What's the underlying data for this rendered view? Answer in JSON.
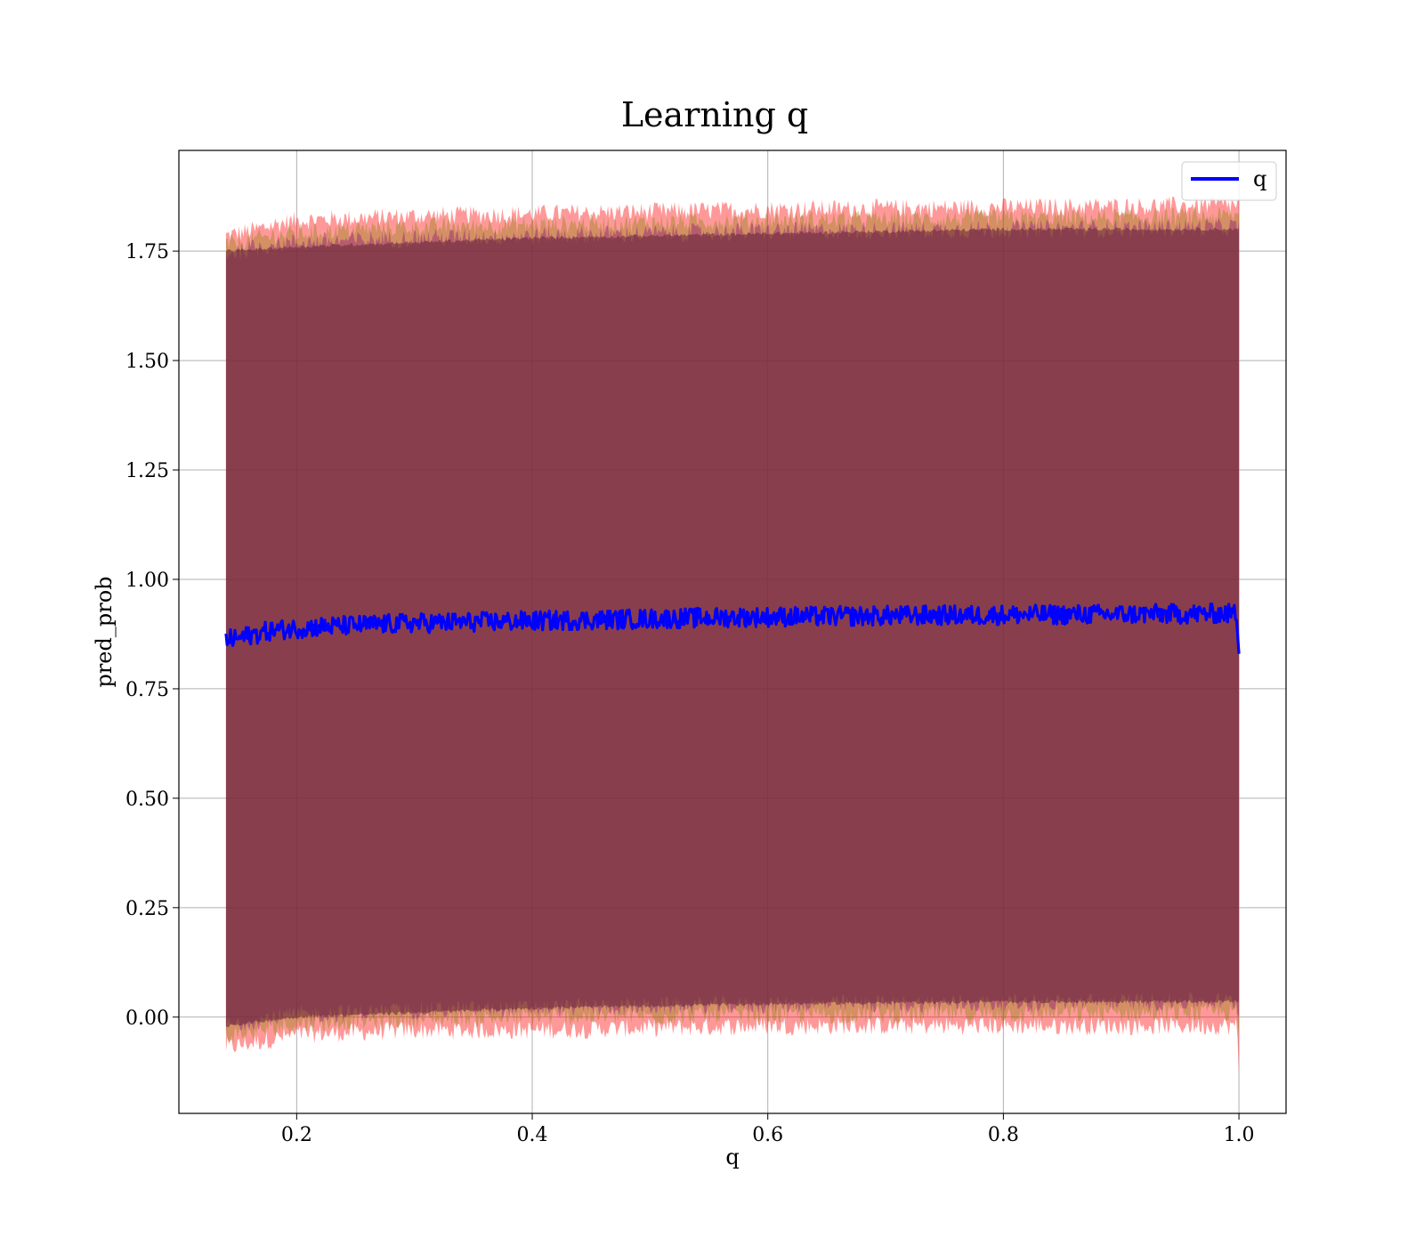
{
  "chart_data": {
    "type": "line",
    "title": "Learning q",
    "xlabel": "q",
    "ylabel": "pred_prob",
    "xlim": [
      0.1,
      1.04
    ],
    "ylim": [
      -0.22,
      1.98
    ],
    "xticks": [
      0.2,
      0.4,
      0.6,
      0.8,
      1.0
    ],
    "xtick_labels": [
      "0.2",
      "0.4",
      "0.6",
      "0.8",
      "1.0"
    ],
    "yticks": [
      0.0,
      0.25,
      0.5,
      0.75,
      1.0,
      1.25,
      1.5,
      1.75
    ],
    "ytick_labels": [
      "0.00",
      "0.25",
      "0.50",
      "0.75",
      "1.00",
      "1.25",
      "1.50",
      "1.75"
    ],
    "grid": true,
    "legend": {
      "position": "upper right",
      "entries": [
        "q"
      ]
    },
    "series": [
      {
        "name": "q",
        "color": "#0000ff",
        "x": [
          0.14,
          0.15,
          0.16,
          0.17,
          0.18,
          0.2,
          0.22,
          0.24,
          0.26,
          0.28,
          0.3,
          0.32,
          0.34,
          0.36,
          0.38,
          0.4,
          0.42,
          0.44,
          0.46,
          0.48,
          0.5,
          0.52,
          0.54,
          0.56,
          0.58,
          0.6,
          0.62,
          0.64,
          0.66,
          0.68,
          0.7,
          0.72,
          0.74,
          0.76,
          0.78,
          0.8,
          0.82,
          0.84,
          0.86,
          0.88,
          0.9,
          0.92,
          0.94,
          0.96,
          0.98,
          0.998,
          1.0
        ],
        "y": [
          0.862,
          0.865,
          0.872,
          0.878,
          0.884,
          0.888,
          0.892,
          0.894,
          0.896,
          0.898,
          0.9,
          0.901,
          0.902,
          0.903,
          0.904,
          0.905,
          0.906,
          0.907,
          0.908,
          0.909,
          0.91,
          0.911,
          0.912,
          0.913,
          0.914,
          0.914,
          0.915,
          0.915,
          0.916,
          0.916,
          0.917,
          0.917,
          0.918,
          0.918,
          0.918,
          0.919,
          0.919,
          0.919,
          0.92,
          0.92,
          0.92,
          0.921,
          0.921,
          0.921,
          0.922,
          0.922,
          0.83
        ]
      }
    ],
    "bands": [
      {
        "color": "#ff0000",
        "opacity": 0.4,
        "x": [
          0.14,
          0.16,
          0.18,
          0.2,
          0.25,
          0.3,
          0.4,
          0.5,
          0.6,
          0.7,
          0.8,
          0.9,
          0.998,
          1.0
        ],
        "lower": [
          -0.07,
          -0.06,
          -0.05,
          -0.04,
          -0.035,
          -0.03,
          -0.03,
          -0.025,
          -0.02,
          -0.02,
          -0.02,
          -0.02,
          -0.02,
          -0.12
        ],
        "upper": [
          1.785,
          1.795,
          1.81,
          1.82,
          1.825,
          1.83,
          1.835,
          1.84,
          1.845,
          1.848,
          1.85,
          1.852,
          1.855,
          1.855
        ]
      },
      {
        "color": "#808000",
        "opacity": 0.35,
        "x": [
          0.14,
          0.16,
          0.18,
          0.2,
          0.25,
          0.3,
          0.4,
          0.5,
          0.6,
          0.7,
          0.8,
          0.9,
          0.998,
          1.0
        ],
        "lower": [
          -0.045,
          -0.035,
          -0.025,
          -0.015,
          -0.01,
          -0.005,
          0.0,
          0.002,
          0.005,
          0.005,
          0.007,
          0.008,
          0.01,
          -0.05
        ],
        "upper": [
          1.765,
          1.775,
          1.785,
          1.79,
          1.8,
          1.805,
          1.81,
          1.815,
          1.82,
          1.823,
          1.825,
          1.827,
          1.83,
          1.83
        ]
      },
      {
        "color": "#800080",
        "opacity": 0.35,
        "x": [
          0.14,
          0.16,
          0.18,
          0.2,
          0.25,
          0.3,
          0.4,
          0.5,
          0.6,
          0.7,
          0.8,
          0.9,
          0.998,
          1.0
        ],
        "lower": [
          -0.02,
          -0.01,
          0.0,
          0.005,
          0.01,
          0.015,
          0.02,
          0.025,
          0.028,
          0.03,
          0.032,
          0.034,
          0.036,
          0.0
        ],
        "upper": [
          1.745,
          1.755,
          1.765,
          1.77,
          1.775,
          1.78,
          1.785,
          1.79,
          1.795,
          1.798,
          1.8,
          1.802,
          1.805,
          1.805
        ]
      },
      {
        "color": "#6b2a3a",
        "opacity": 0.6,
        "x": [
          0.14,
          0.2,
          0.4,
          0.6,
          0.8,
          1.0
        ],
        "lower": [
          -0.02,
          0.0,
          0.02,
          0.03,
          0.035,
          0.035
        ],
        "upper": [
          1.75,
          1.76,
          1.78,
          1.79,
          1.8,
          1.8
        ]
      }
    ]
  }
}
